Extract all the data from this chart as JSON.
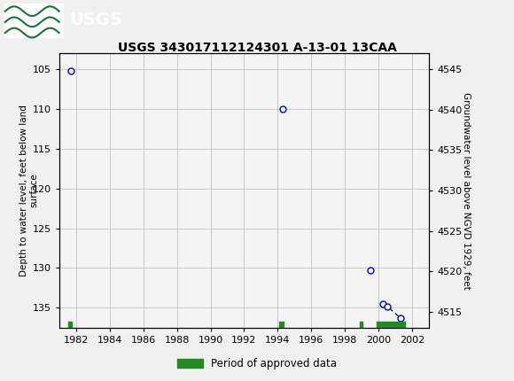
{
  "title": "USGS 343017112124301 A-13-01 13CAA",
  "ylabel_left": "Depth to water level, feet below land\nsurface",
  "ylabel_right": "Groundwater level above NGVD 1929, feet",
  "xlim": [
    1981.0,
    2003.0
  ],
  "ylim_left": [
    137.5,
    103.0
  ],
  "ylim_right": [
    4513.0,
    4547.0
  ],
  "xticks": [
    1982,
    1984,
    1986,
    1988,
    1990,
    1992,
    1994,
    1996,
    1998,
    2000,
    2002
  ],
  "yticks_left": [
    105,
    110,
    115,
    120,
    125,
    130,
    135
  ],
  "yticks_right": [
    4545,
    4540,
    4535,
    4530,
    4525,
    4520,
    4515
  ],
  "circle_points": [
    [
      1981.7,
      105.2
    ],
    [
      1994.3,
      110.0
    ],
    [
      1999.5,
      130.3
    ],
    [
      2000.25,
      134.5
    ],
    [
      2000.5,
      134.8
    ],
    [
      2001.3,
      136.3
    ]
  ],
  "dashed_line_points": [
    [
      2000.25,
      134.5
    ],
    [
      2000.5,
      134.8
    ],
    [
      2001.3,
      136.3
    ]
  ],
  "green_bars": [
    [
      1981.55,
      1981.75
    ],
    [
      1994.1,
      1994.35
    ],
    [
      1998.85,
      1999.05
    ],
    [
      1999.9,
      2001.55
    ]
  ],
  "green_bar_y": 137.1,
  "green_bar_thickness": 0.35,
  "header_color": "#1a7040",
  "background_color": "#f0f0f0",
  "plot_bg_color": "#f5f5f5",
  "grid_color": "#c8c8c8",
  "point_color": "#0000cc",
  "legend_label": "Period of approved data"
}
